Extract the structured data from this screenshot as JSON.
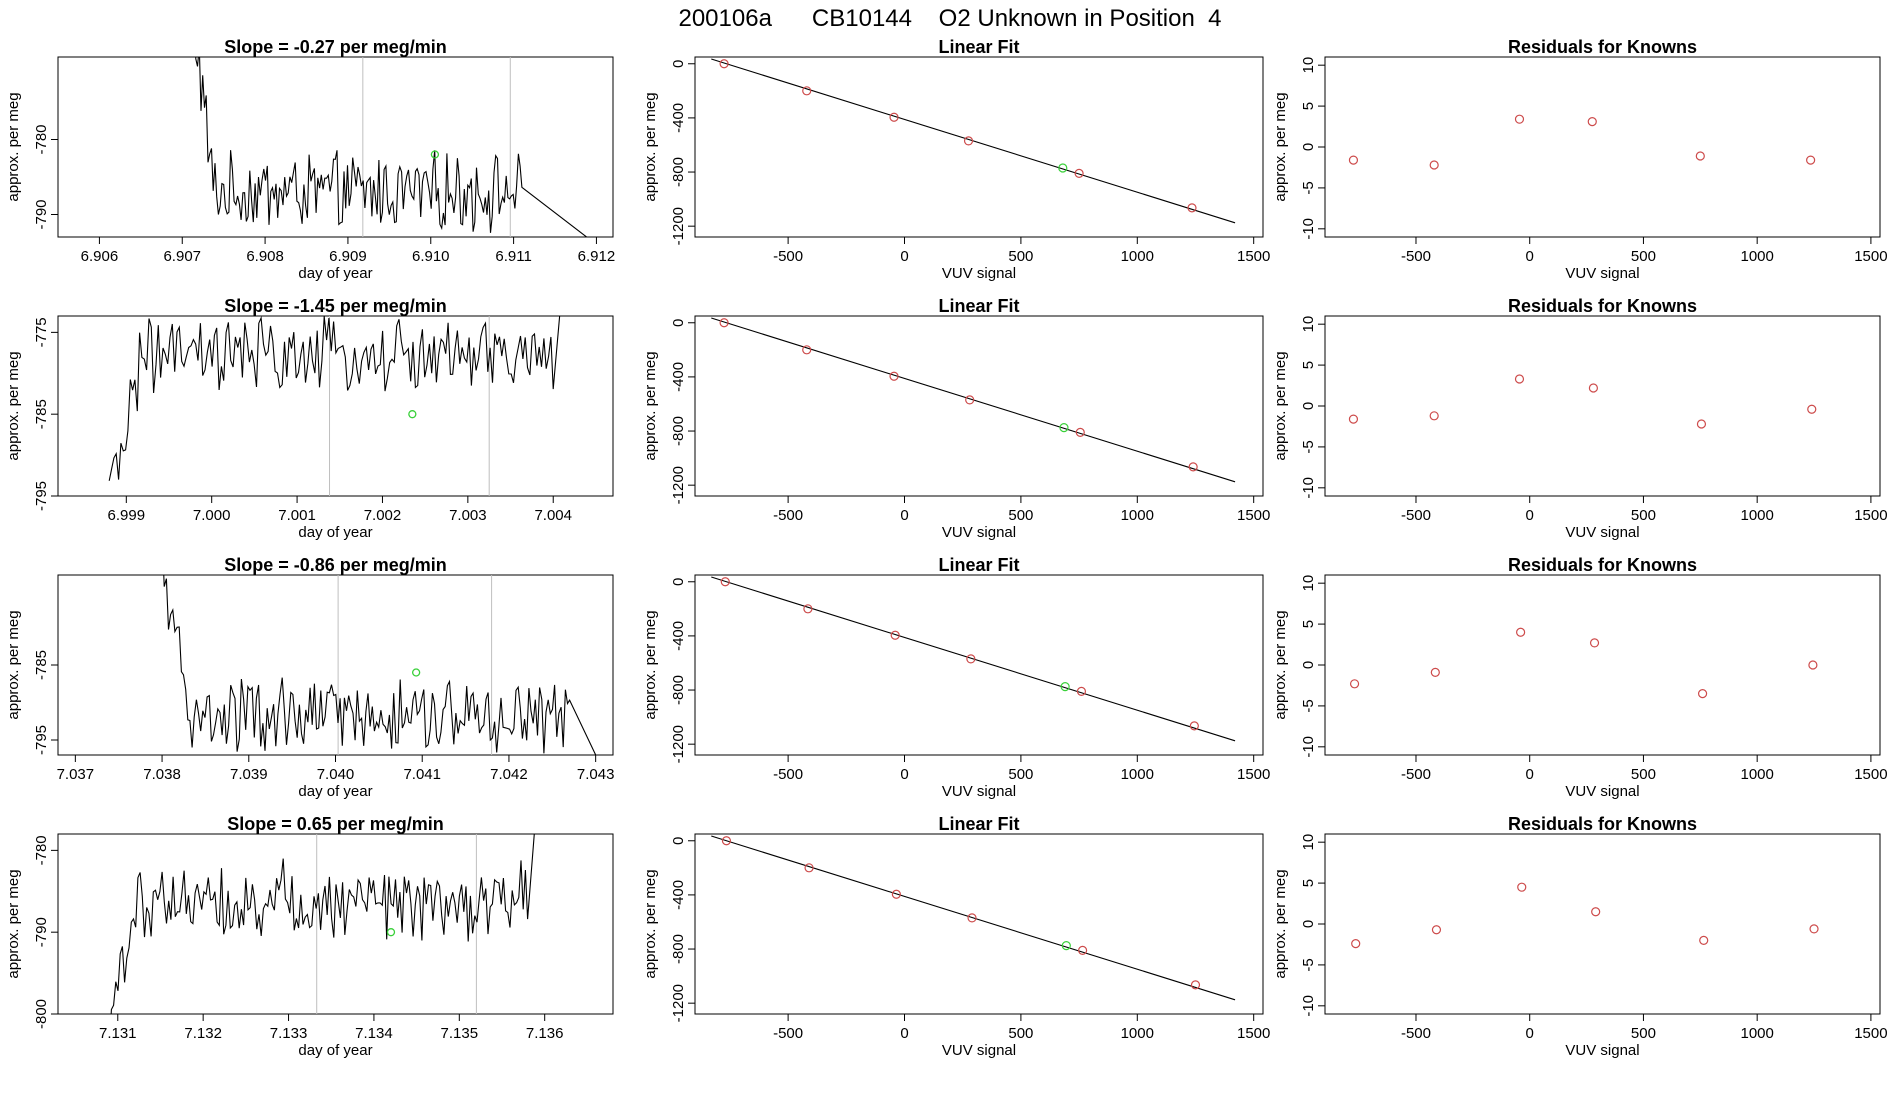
{
  "page_title": "200106a      CB10144    O2 Unknown in Position  4",
  "colors": {
    "line": "#000000",
    "known_point": "#cd4b4b",
    "unknown_point": "#39d039",
    "marker_line": "#bfbfbf"
  },
  "chart_data": [
    {
      "type": "line",
      "title": "Slope =  -0.27  per meg/min",
      "xlabel": "day of year",
      "ylabel": "approx. per meg",
      "xlim": [
        6.9055,
        6.9122
      ],
      "ylim": [
        -793,
        -769
      ],
      "xticks": [
        6.906,
        6.907,
        6.908,
        6.909,
        6.91,
        6.911,
        6.912
      ],
      "xtick_labels": [
        "6.906",
        "6.907",
        "6.908",
        "6.909",
        "6.910",
        "6.911",
        "6.912"
      ],
      "yticks": [
        -780,
        -790
      ],
      "ytick_labels": [
        "-780",
        "-790"
      ],
      "vlines": [
        6.90918,
        6.91096
      ],
      "series_x": [
        6.9071,
        6.9111,
        6.912
      ],
      "series_y": [
        -760,
        -787,
        -794
      ],
      "unknown_point": {
        "x": 6.91005,
        "y": -782
      },
      "grid": false
    },
    {
      "type": "scatter",
      "title": "Linear Fit",
      "xlabel": "VUV signal",
      "ylabel": "approx. per meg",
      "xlim": [
        -900,
        1540
      ],
      "ylim": [
        -1280,
        50
      ],
      "xticks": [
        -500,
        0,
        500,
        1000,
        1500
      ],
      "xtick_labels": [
        "-500",
        "0",
        "500",
        "1000",
        "1500"
      ],
      "yticks": [
        0,
        -400,
        -800,
        -1200
      ],
      "ytick_labels": [
        "0",
        "-400",
        "-800",
        "-1200"
      ],
      "fit_line": {
        "x": [
          -830,
          1420
        ],
        "y": [
          35,
          -1175
        ]
      },
      "known_x": [
        -775,
        -420,
        -45,
        275,
        750,
        1235
      ],
      "known_y": [
        0,
        -200,
        -395,
        -570,
        -810,
        -1065
      ],
      "unknown_point": {
        "x": 680,
        "y": -770
      },
      "grid": false
    },
    {
      "type": "scatter",
      "title": "Residuals for Knowns",
      "xlabel": "VUV signal",
      "ylabel": "approx. per meg",
      "xlim": [
        -900,
        1540
      ],
      "ylim": [
        -11,
        11
      ],
      "xticks": [
        -500,
        0,
        500,
        1000,
        1500
      ],
      "xtick_labels": [
        "-500",
        "0",
        "500",
        "1000",
        "1500"
      ],
      "yticks": [
        10,
        5,
        0,
        -5,
        -10
      ],
      "ytick_labels": [
        "10",
        "5",
        "0",
        "-5",
        "-10"
      ],
      "known_x": [
        -775,
        -420,
        -45,
        275,
        750,
        1235
      ],
      "known_y": [
        -1.6,
        -2.2,
        3.4,
        3.1,
        -1.1,
        -1.6
      ],
      "grid": false
    },
    {
      "type": "line",
      "title": "Slope =  -1.45  per meg/min",
      "xlabel": "day of year",
      "ylabel": "approx. per meg",
      "xlim": [
        6.9982,
        7.0047
      ],
      "ylim": [
        -795,
        -773
      ],
      "xticks": [
        6.999,
        7.0,
        7.001,
        7.002,
        7.003,
        7.004
      ],
      "xtick_labels": [
        "6.999",
        "7.000",
        "7.001",
        "7.002",
        "7.003",
        "7.004"
      ],
      "yticks": [
        -775,
        -785,
        -795
      ],
      "ytick_labels": [
        "-775",
        "-785",
        "-795"
      ],
      "vlines": [
        7.00138,
        7.00325
      ],
      "series_x": [
        6.9988,
        7.004,
        7.0041
      ],
      "series_y": [
        -796,
        -778,
        -770
      ],
      "unknown_point": {
        "x": 7.00235,
        "y": -785
      },
      "grid": false
    },
    {
      "type": "scatter",
      "title": "Linear Fit",
      "xlabel": "VUV signal",
      "ylabel": "approx. per meg",
      "xlim": [
        -900,
        1540
      ],
      "ylim": [
        -1280,
        50
      ],
      "xticks": [
        -500,
        0,
        500,
        1000,
        1500
      ],
      "xtick_labels": [
        "-500",
        "0",
        "500",
        "1000",
        "1500"
      ],
      "yticks": [
        0,
        -400,
        -800,
        -1200
      ],
      "ytick_labels": [
        "0",
        "-400",
        "-800",
        "-1200"
      ],
      "fit_line": {
        "x": [
          -830,
          1420
        ],
        "y": [
          35,
          -1175
        ]
      },
      "known_x": [
        -775,
        -420,
        -45,
        280,
        755,
        1240
      ],
      "known_y": [
        0,
        -200,
        -395,
        -570,
        -810,
        -1065
      ],
      "unknown_point": {
        "x": 685,
        "y": -775
      },
      "grid": false
    },
    {
      "type": "scatter",
      "title": "Residuals for Knowns",
      "xlabel": "VUV signal",
      "ylabel": "approx. per meg",
      "xlim": [
        -900,
        1540
      ],
      "ylim": [
        -11,
        11
      ],
      "xticks": [
        -500,
        0,
        500,
        1000,
        1500
      ],
      "xtick_labels": [
        "-500",
        "0",
        "500",
        "1000",
        "1500"
      ],
      "yticks": [
        10,
        5,
        0,
        -5,
        -10
      ],
      "ytick_labels": [
        "10",
        "5",
        "0",
        "-5",
        "-10"
      ],
      "known_x": [
        -775,
        -420,
        -45,
        280,
        755,
        1240
      ],
      "known_y": [
        -1.6,
        -1.2,
        3.3,
        2.2,
        -2.2,
        -0.4
      ],
      "grid": false
    },
    {
      "type": "line",
      "title": "Slope =  -0.86  per meg/min",
      "xlabel": "day of year",
      "ylabel": "approx. per meg",
      "xlim": [
        7.0368,
        7.0432
      ],
      "ylim": [
        -797,
        -773
      ],
      "xticks": [
        7.037,
        7.038,
        7.039,
        7.04,
        7.041,
        7.042,
        7.043
      ],
      "xtick_labels": [
        "7.037",
        "7.038",
        "7.039",
        "7.040",
        "7.041",
        "7.042",
        "7.043"
      ],
      "yticks": [
        -785,
        -795
      ],
      "ytick_labels": [
        "-785",
        "-795"
      ],
      "vlines": [
        7.04003,
        7.0418
      ],
      "series_x": [
        7.038,
        7.0427,
        7.043
      ],
      "series_y": [
        -772,
        -792,
        -797
      ],
      "unknown_point": {
        "x": 7.04093,
        "y": -786
      },
      "grid": false
    },
    {
      "type": "scatter",
      "title": "Linear Fit",
      "xlabel": "VUV signal",
      "ylabel": "approx. per meg",
      "xlim": [
        -900,
        1540
      ],
      "ylim": [
        -1280,
        50
      ],
      "xticks": [
        -500,
        0,
        500,
        1000,
        1500
      ],
      "xtick_labels": [
        "-500",
        "0",
        "500",
        "1000",
        "1500"
      ],
      "yticks": [
        0,
        -400,
        -800,
        -1200
      ],
      "ytick_labels": [
        "0",
        "-400",
        "-800",
        "-1200"
      ],
      "fit_line": {
        "x": [
          -830,
          1420
        ],
        "y": [
          35,
          -1175
        ]
      },
      "known_x": [
        -770,
        -415,
        -40,
        285,
        760,
        1245
      ],
      "known_y": [
        0,
        -200,
        -395,
        -570,
        -810,
        -1065
      ],
      "unknown_point": {
        "x": 690,
        "y": -775
      },
      "grid": false
    },
    {
      "type": "scatter",
      "title": "Residuals for Knowns",
      "xlabel": "VUV signal",
      "ylabel": "approx. per meg",
      "xlim": [
        -900,
        1540
      ],
      "ylim": [
        -11,
        11
      ],
      "xticks": [
        -500,
        0,
        500,
        1000,
        1500
      ],
      "xtick_labels": [
        "-500",
        "0",
        "500",
        "1000",
        "1500"
      ],
      "yticks": [
        10,
        5,
        0,
        -5,
        -10
      ],
      "ytick_labels": [
        "10",
        "5",
        "0",
        "-5",
        "-10"
      ],
      "known_x": [
        -770,
        -415,
        -40,
        285,
        760,
        1245
      ],
      "known_y": [
        -2.3,
        -0.9,
        4.0,
        2.7,
        -3.5,
        0.0
      ],
      "grid": false
    },
    {
      "type": "line",
      "title": "Slope =  0.65  per meg/min",
      "xlabel": "day of year",
      "ylabel": "approx. per meg",
      "xlim": [
        7.1303,
        7.1368
      ],
      "ylim": [
        -800,
        -778
      ],
      "xticks": [
        7.131,
        7.132,
        7.133,
        7.134,
        7.135,
        7.136
      ],
      "xtick_labels": [
        "7.131",
        "7.132",
        "7.133",
        "7.134",
        "7.135",
        "7.136"
      ],
      "yticks": [
        -780,
        -790,
        -800
      ],
      "ytick_labels": [
        "-780",
        "-790",
        "-800"
      ],
      "vlines": [
        7.13333,
        7.1352
      ],
      "series_x": [
        7.1309,
        7.1358,
        7.1359
      ],
      "series_y": [
        -801,
        -786,
        -775
      ],
      "unknown_point": {
        "x": 7.1342,
        "y": -790
      },
      "grid": false
    },
    {
      "type": "scatter",
      "title": "Linear Fit",
      "xlabel": "VUV signal",
      "ylabel": "approx. per meg",
      "xlim": [
        -900,
        1540
      ],
      "ylim": [
        -1280,
        50
      ],
      "xticks": [
        -500,
        0,
        500,
        1000,
        1500
      ],
      "xtick_labels": [
        "-500",
        "0",
        "500",
        "1000",
        "1500"
      ],
      "yticks": [
        0,
        -400,
        -800,
        -1200
      ],
      "ytick_labels": [
        "0",
        "-400",
        "-800",
        "-1200"
      ],
      "fit_line": {
        "x": [
          -830,
          1420
        ],
        "y": [
          35,
          -1175
        ]
      },
      "known_x": [
        -765,
        -410,
        -35,
        290,
        765,
        1250
      ],
      "known_y": [
        0,
        -200,
        -395,
        -570,
        -810,
        -1065
      ],
      "unknown_point": {
        "x": 695,
        "y": -775
      },
      "grid": false
    },
    {
      "type": "scatter",
      "title": "Residuals for Knowns",
      "xlabel": "VUV signal",
      "ylabel": "approx. per meg",
      "xlim": [
        -900,
        1540
      ],
      "ylim": [
        -11,
        11
      ],
      "xticks": [
        -500,
        0,
        500,
        1000,
        1500
      ],
      "xtick_labels": [
        "-500",
        "0",
        "500",
        "1000",
        "1500"
      ],
      "yticks": [
        10,
        5,
        0,
        -5,
        -10
      ],
      "ytick_labels": [
        "10",
        "5",
        "0",
        "-5",
        "-10"
      ],
      "known_x": [
        -765,
        -410,
        -35,
        290,
        765,
        1250
      ],
      "known_y": [
        -2.4,
        -0.7,
        4.5,
        1.5,
        -2.0,
        -0.6
      ],
      "grid": false
    }
  ]
}
